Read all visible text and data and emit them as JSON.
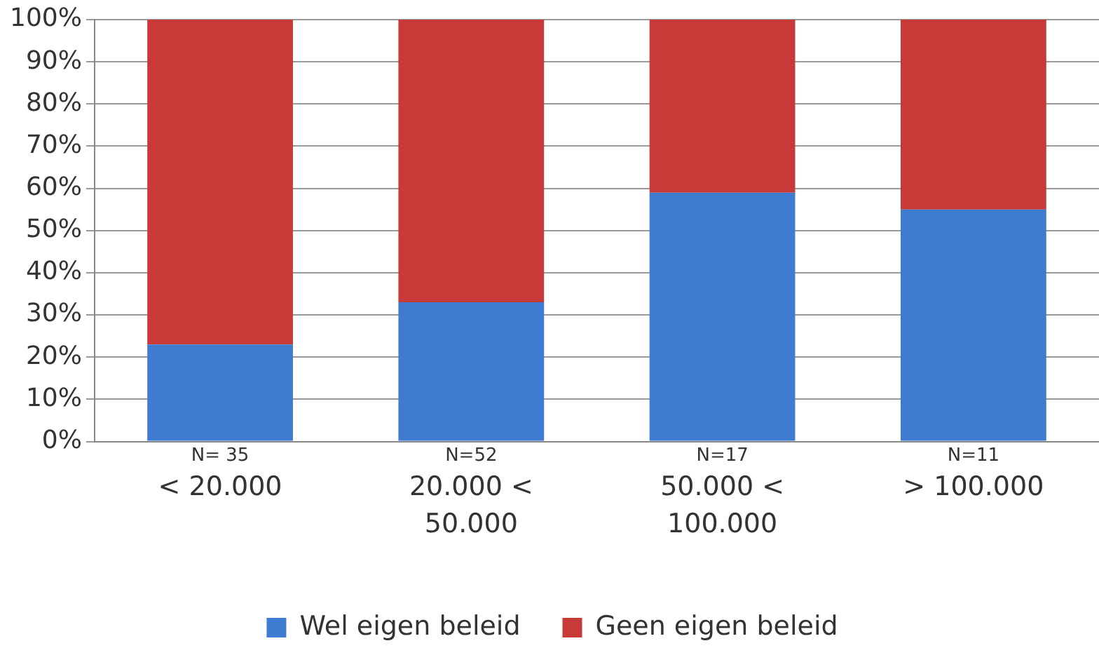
{
  "chart_data": {
    "type": "bar",
    "stacked": true,
    "categories": [
      "< 20.000",
      "20.000 < 50.000",
      "50.000 < 100.000",
      "> 100.000"
    ],
    "series": [
      {
        "name": "Wel eigen beleid",
        "color": "#3f7bd0",
        "values": [
          23,
          33,
          59,
          55
        ]
      },
      {
        "name": "Geen eigen beleid",
        "color": "#c83a38",
        "values": [
          77,
          67,
          41,
          45
        ]
      }
    ],
    "ylim": [
      0,
      100
    ],
    "yticks": [
      {
        "value": 0,
        "label": "0%"
      },
      {
        "value": 10,
        "label": "10%"
      },
      {
        "value": 20,
        "label": "20%"
      },
      {
        "value": 30,
        "label": "30%"
      },
      {
        "value": 40,
        "label": "40%"
      },
      {
        "value": 50,
        "label": "50%"
      },
      {
        "value": 60,
        "label": "60%"
      },
      {
        "value": 70,
        "label": "70%"
      },
      {
        "value": 80,
        "label": "80%"
      },
      {
        "value": 90,
        "label": "90%"
      },
      {
        "value": 100,
        "label": "100%"
      }
    ],
    "grid": "y",
    "legend": "bottom",
    "annotations": [
      "N= 35",
      "N=52",
      "N=17",
      "N=11"
    ]
  }
}
